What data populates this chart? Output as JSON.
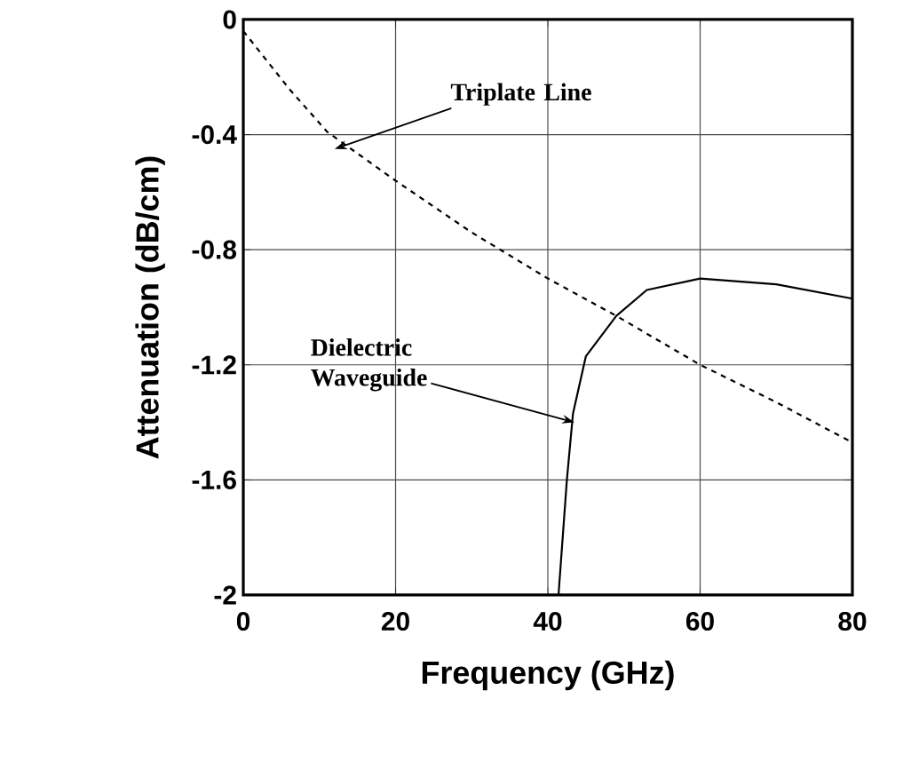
{
  "chart_data": {
    "type": "line",
    "xlabel": "Frequency (GHz)",
    "ylabel": "Attenuation (dB/cm)",
    "xlim": [
      0,
      80
    ],
    "ylim": [
      -2,
      0
    ],
    "xticks": [
      0,
      20,
      40,
      60,
      80
    ],
    "yticks": [
      {
        "value": 0,
        "label": "0"
      },
      {
        "value": -0.4,
        "label": "-0.4"
      },
      {
        "value": -0.8,
        "label": "-0.8"
      },
      {
        "value": -1.2,
        "label": "-1.2"
      },
      {
        "value": -1.6,
        "label": "-1.6"
      },
      {
        "value": -2,
        "label": "-2"
      }
    ],
    "grid": true,
    "series": [
      {
        "color": "#000000",
        "line_style": "dashed",
        "x": [
          0,
          3,
          6,
          11,
          20,
          30,
          40,
          49,
          60,
          70,
          80
        ],
        "values": [
          -0.04,
          -0.14,
          -0.24,
          -0.39,
          -0.56,
          -0.74,
          -0.9,
          -1.03,
          -1.2,
          -1.33,
          -1.47
        ]
      },
      {
        "color": "#000000",
        "line_style": "solid",
        "x": [
          41.4,
          42.5,
          43.3,
          45,
          49,
          53,
          60,
          70,
          80
        ],
        "values": [
          -2,
          -1.6,
          -1.37,
          -1.17,
          -1.03,
          -0.94,
          -0.9,
          -0.92,
          -0.97
        ]
      }
    ],
    "annotations": [
      {
        "text": "Triplate Line",
        "x": 12,
        "y": -0.45
      },
      {
        "text": "Dielectric Waveguide",
        "x": 43.5,
        "y": -1.4
      }
    ]
  }
}
